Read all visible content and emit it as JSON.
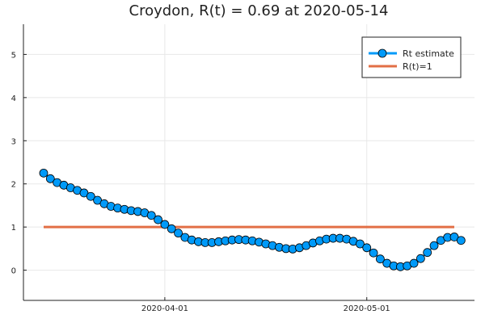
{
  "chart_data": {
    "type": "line",
    "title": "Croydon, R(t) = 0.69 at 2020-05-14",
    "xlabel": "",
    "ylabel": "",
    "x_start": "2020-03-14",
    "x_end": "2020-05-14",
    "xlim": [
      "2020-03-11",
      "2020-05-17"
    ],
    "ylim": [
      -0.7,
      5.7
    ],
    "yticks": [
      0,
      1,
      2,
      3,
      4,
      5
    ],
    "xticks": [
      "2020-04-01",
      "2020-05-01"
    ],
    "grid": true,
    "legend_position": "top-right",
    "series": [
      {
        "name": "Rt estimate",
        "color": "#009af9",
        "marker": "circle",
        "values": [
          2.25,
          2.12,
          2.03,
          1.97,
          1.91,
          1.85,
          1.79,
          1.71,
          1.62,
          1.54,
          1.48,
          1.44,
          1.41,
          1.38,
          1.36,
          1.33,
          1.27,
          1.17,
          1.06,
          0.96,
          0.86,
          0.76,
          0.7,
          0.66,
          0.64,
          0.64,
          0.66,
          0.68,
          0.7,
          0.71,
          0.7,
          0.68,
          0.65,
          0.61,
          0.57,
          0.53,
          0.5,
          0.49,
          0.52,
          0.57,
          0.63,
          0.68,
          0.72,
          0.74,
          0.74,
          0.72,
          0.67,
          0.61,
          0.52,
          0.4,
          0.26,
          0.16,
          0.1,
          0.08,
          0.1,
          0.16,
          0.27,
          0.41,
          0.57,
          0.69,
          0.76,
          0.77,
          0.69
        ]
      },
      {
        "name": "R(t)=1",
        "color": "#e26f46",
        "constant": 1
      }
    ]
  }
}
